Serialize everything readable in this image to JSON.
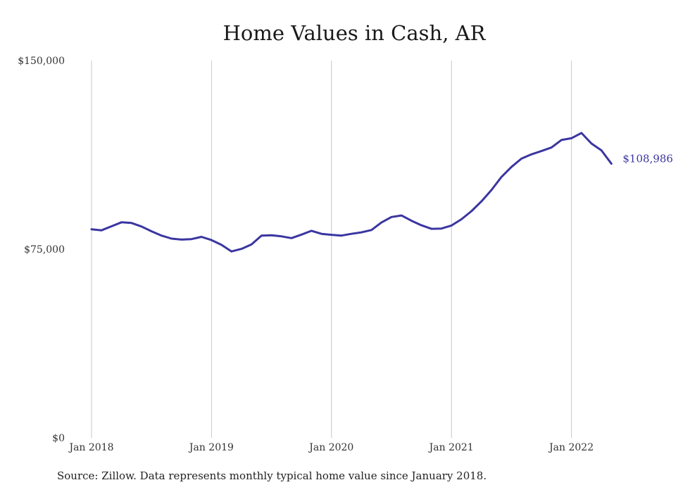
{
  "chart_data": {
    "type": "line",
    "title": "Home Values in Cash, AR",
    "xlabel": "",
    "ylabel": "",
    "x_start": "2018-01",
    "x_tick_labels": [
      "Jan 2018",
      "Jan 2019",
      "Jan 2020",
      "Jan 2021",
      "Jan 2022"
    ],
    "y_tick_labels": [
      "$150,000",
      "$75,000",
      "$0"
    ],
    "ylim": [
      0,
      150000
    ],
    "grid": "vertical",
    "series": [
      {
        "color": "#3b36a0",
        "x": [
          "2018-01",
          "2018-02",
          "2018-03",
          "2018-04",
          "2018-05",
          "2018-06",
          "2018-07",
          "2018-08",
          "2018-09",
          "2018-10",
          "2018-11",
          "2018-12",
          "2019-01",
          "2019-02",
          "2019-03",
          "2019-04",
          "2019-05",
          "2019-06",
          "2019-07",
          "2019-08",
          "2019-09",
          "2019-10",
          "2019-11",
          "2019-12",
          "2020-01",
          "2020-02",
          "2020-03",
          "2020-04",
          "2020-05",
          "2020-06",
          "2020-07",
          "2020-08",
          "2020-09",
          "2020-10",
          "2020-11",
          "2020-12",
          "2021-01",
          "2021-02",
          "2021-03",
          "2021-04",
          "2021-05",
          "2021-06",
          "2021-07",
          "2021-08",
          "2021-09",
          "2021-10",
          "2021-11",
          "2021-12",
          "2022-01",
          "2022-02",
          "2022-03",
          "2022-04",
          "2022-05"
        ],
        "values": [
          82900,
          82500,
          84100,
          85700,
          85400,
          84000,
          82100,
          80400,
          79200,
          78800,
          79000,
          79900,
          78600,
          76700,
          74100,
          75100,
          76900,
          80400,
          80500,
          80100,
          79400,
          80800,
          82300,
          81100,
          80700,
          80400,
          81100,
          81700,
          82600,
          85600,
          87800,
          88400,
          86300,
          84500,
          83100,
          83200,
          84400,
          86900,
          90100,
          94000,
          98500,
          103700,
          107700,
          111000,
          112700,
          114000,
          115400,
          118400,
          119100,
          121200,
          117000,
          114300,
          108986
        ]
      }
    ],
    "end_label": "$108,986"
  },
  "source_note": "Source: Zillow. Data represents monthly typical home value since January 2018."
}
